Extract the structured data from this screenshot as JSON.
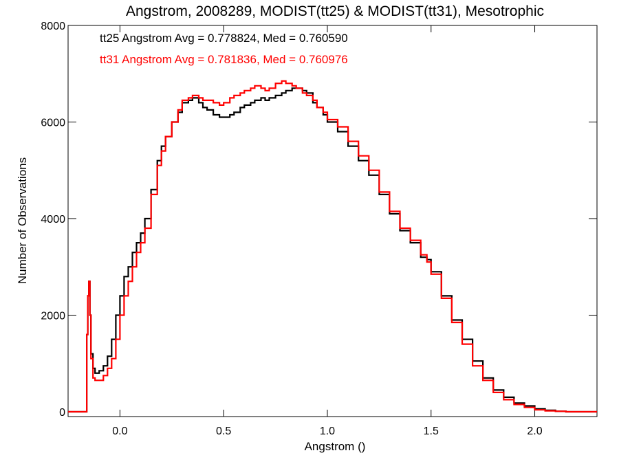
{
  "chart_data": {
    "type": "line",
    "title": "Angstrom, 2008289, MODIST(tt25) & MODIST(tt31), Mesotrophic",
    "xlabel": "Angstrom ()",
    "ylabel": "Number of Observations",
    "xlim": [
      -0.25,
      2.3
    ],
    "ylim": [
      -100,
      8000
    ],
    "x_ticks": [
      0.0,
      0.5,
      1.0,
      1.5,
      2.0
    ],
    "x_tick_labels": [
      "0.0",
      "0.5",
      "1.0",
      "1.5",
      "2.0"
    ],
    "y_ticks": [
      0,
      2000,
      4000,
      6000,
      8000
    ],
    "y_tick_labels": [
      "0",
      "2000",
      "4000",
      "6000",
      "8000"
    ],
    "grid": false,
    "legend_position": "top-left",
    "annotations": [
      {
        "text": "tt25 Angstrom Avg = 0.778824, Med = 0.760590",
        "color": "#000000"
      },
      {
        "text": "tt31 Angstrom Avg = 0.781836, Med = 0.760976",
        "color": "#ff0000"
      }
    ],
    "series": [
      {
        "name": "tt25",
        "color": "#000000",
        "x": [
          -0.25,
          -0.17,
          -0.16,
          -0.155,
          -0.15,
          -0.145,
          -0.14,
          -0.13,
          -0.12,
          -0.1,
          -0.08,
          -0.06,
          -0.04,
          -0.02,
          0.0,
          0.02,
          0.04,
          0.06,
          0.08,
          0.1,
          0.12,
          0.15,
          0.18,
          0.2,
          0.22,
          0.25,
          0.28,
          0.3,
          0.33,
          0.35,
          0.38,
          0.4,
          0.42,
          0.45,
          0.48,
          0.5,
          0.53,
          0.55,
          0.58,
          0.6,
          0.63,
          0.65,
          0.68,
          0.7,
          0.72,
          0.75,
          0.78,
          0.8,
          0.83,
          0.85,
          0.88,
          0.9,
          0.93,
          0.95,
          0.98,
          1.0,
          1.05,
          1.1,
          1.15,
          1.2,
          1.25,
          1.3,
          1.35,
          1.4,
          1.45,
          1.48,
          1.5,
          1.55,
          1.6,
          1.65,
          1.7,
          1.75,
          1.8,
          1.85,
          1.9,
          1.95,
          2.0,
          2.05,
          2.1,
          2.15,
          2.2,
          2.3
        ],
        "values": [
          0,
          0,
          1600,
          2400,
          2700,
          2000,
          1200,
          900,
          800,
          850,
          950,
          1150,
          1500,
          2000,
          2400,
          2800,
          3000,
          3300,
          3500,
          3700,
          4000,
          4600,
          5200,
          5500,
          5700,
          6000,
          6200,
          6400,
          6450,
          6500,
          6400,
          6300,
          6250,
          6150,
          6100,
          6100,
          6150,
          6200,
          6300,
          6350,
          6400,
          6450,
          6500,
          6450,
          6500,
          6550,
          6600,
          6650,
          6700,
          6700,
          6650,
          6600,
          6400,
          6300,
          6150,
          6000,
          5800,
          5500,
          5200,
          4900,
          4500,
          4100,
          3750,
          3500,
          3200,
          3150,
          2900,
          2400,
          1900,
          1500,
          1050,
          700,
          450,
          300,
          180,
          120,
          60,
          30,
          10,
          0,
          0,
          0
        ]
      },
      {
        "name": "tt31",
        "color": "#ff0000",
        "x": [
          -0.25,
          -0.17,
          -0.16,
          -0.155,
          -0.15,
          -0.145,
          -0.14,
          -0.13,
          -0.12,
          -0.1,
          -0.08,
          -0.06,
          -0.04,
          -0.02,
          0.0,
          0.02,
          0.04,
          0.06,
          0.08,
          0.1,
          0.12,
          0.15,
          0.18,
          0.2,
          0.22,
          0.25,
          0.28,
          0.3,
          0.33,
          0.35,
          0.38,
          0.4,
          0.42,
          0.45,
          0.48,
          0.5,
          0.53,
          0.55,
          0.58,
          0.6,
          0.63,
          0.65,
          0.68,
          0.7,
          0.72,
          0.75,
          0.78,
          0.8,
          0.83,
          0.85,
          0.88,
          0.9,
          0.93,
          0.95,
          0.98,
          1.0,
          1.05,
          1.1,
          1.15,
          1.2,
          1.25,
          1.3,
          1.35,
          1.4,
          1.45,
          1.48,
          1.5,
          1.55,
          1.6,
          1.65,
          1.7,
          1.75,
          1.8,
          1.85,
          1.9,
          1.95,
          2.0,
          2.05,
          2.1,
          2.15,
          2.2,
          2.3
        ],
        "values": [
          0,
          0,
          1600,
          2400,
          2700,
          2000,
          1100,
          700,
          650,
          650,
          750,
          900,
          1100,
          1500,
          2000,
          2400,
          2700,
          3000,
          3300,
          3500,
          3800,
          4500,
          5100,
          5400,
          5700,
          6000,
          6250,
          6450,
          6500,
          6550,
          6500,
          6450,
          6450,
          6400,
          6350,
          6400,
          6500,
          6550,
          6600,
          6650,
          6700,
          6750,
          6700,
          6650,
          6700,
          6800,
          6850,
          6800,
          6750,
          6700,
          6600,
          6550,
          6450,
          6300,
          6200,
          6050,
          5900,
          5600,
          5300,
          5000,
          4550,
          4150,
          3800,
          3550,
          3250,
          3100,
          2850,
          2350,
          1850,
          1400,
          950,
          650,
          400,
          250,
          150,
          90,
          40,
          20,
          10,
          0,
          0,
          0
        ]
      }
    ]
  }
}
